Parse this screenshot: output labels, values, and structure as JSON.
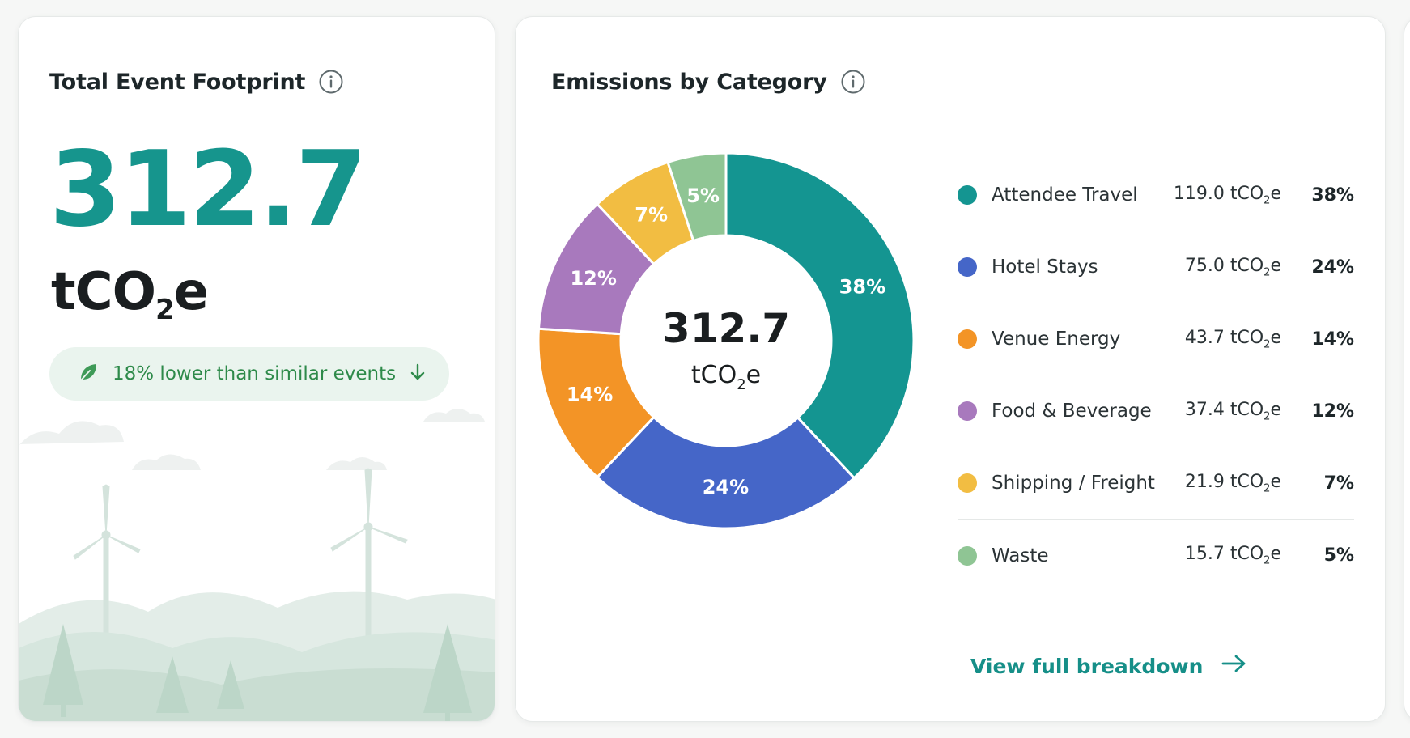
{
  "total_card": {
    "title": "Total Event Footprint",
    "info_icon": "info-icon",
    "value": "312.7",
    "unit_prefix": "tCO",
    "unit_sub": "2",
    "unit_suffix": "e",
    "comparison_text": "18% lower than similar events",
    "comparison_icon": "leaf-icon",
    "comparison_arrow": "arrow-down-icon",
    "accent_color": "#16958d",
    "pill_text_color": "#2e8a4a"
  },
  "emissions_card": {
    "title": "Emissions by Category",
    "info_icon": "info-icon",
    "center_value": "312.7",
    "center_unit": "tCO2e",
    "unit_prefix": "tCO",
    "unit_sub": "2",
    "unit_suffix": "e",
    "link_label": "View full breakdown",
    "link_icon": "arrow-right-icon",
    "link_color": "#168f88"
  },
  "chart_data": {
    "type": "pie",
    "categories": [
      "Attendee Travel",
      "Hotel Stays",
      "Venue Energy",
      "Food & Beverage",
      "Shipping / Freight",
      "Waste"
    ],
    "values": [
      119.0,
      75.0,
      43.7,
      37.4,
      21.9,
      15.7
    ],
    "value_labels": [
      "119.0",
      "75.0",
      "43.7",
      "37.4",
      "21.9",
      "15.7"
    ],
    "percent_labels": [
      "38%",
      "24%",
      "14%",
      "12%",
      "7%",
      "5%"
    ],
    "percents": [
      38,
      24,
      14,
      12,
      7,
      5
    ],
    "colors": [
      "#149591",
      "#4566c8",
      "#f39426",
      "#a879bd",
      "#f2bd42",
      "#8fc594"
    ],
    "style": "donut",
    "legend_position": "right",
    "center_text": "312.7",
    "center_subtext": "tCO2e"
  }
}
